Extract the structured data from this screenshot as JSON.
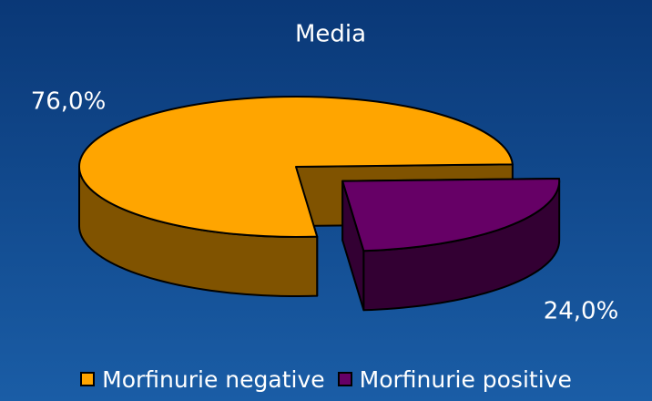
{
  "chart_data": {
    "type": "pie3d",
    "title": "Media",
    "categories": [
      "Morfinurie negative",
      "Morfinurie positive"
    ],
    "values": [
      76,
      24
    ],
    "value_labels": [
      "76,0%",
      "24,0%"
    ],
    "colors": [
      "#ffa500",
      "#660066"
    ],
    "legend": "bottom"
  }
}
